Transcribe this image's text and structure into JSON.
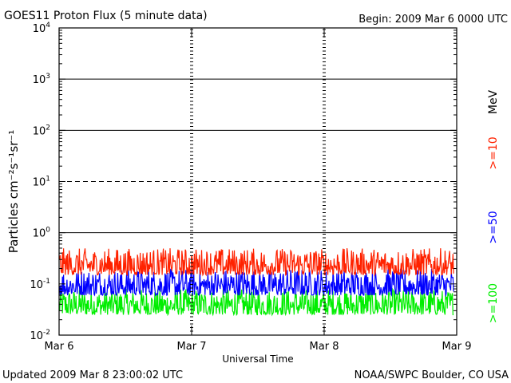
{
  "header": {
    "title": "GOES11 Proton Flux (5 minute data)",
    "begin": "Begin: 2009 Mar 6 0000 UTC"
  },
  "footer": {
    "updated": "Updated 2009 Mar  8 23:00:02 UTC",
    "credit": "NOAA/SWPC Boulder, CO USA"
  },
  "chart_data": {
    "type": "line",
    "title": "GOES11 Proton Flux (5 minute data)",
    "xlabel": "Universal Time",
    "ylabel": "Particles cm⁻²s⁻¹sr⁻¹",
    "yscale": "log",
    "ylim": [
      0.01,
      10000
    ],
    "xlim": [
      "2009-03-06",
      "2009-03-09"
    ],
    "x_ticks": [
      "Mar 6",
      "Mar 7",
      "Mar 8",
      "Mar 9"
    ],
    "y_ticks": [
      {
        "base": "10",
        "exp": "-2"
      },
      {
        "base": "10",
        "exp": "-1"
      },
      {
        "base": "10",
        "exp": "0"
      },
      {
        "base": "10",
        "exp": "1"
      },
      {
        "base": "10",
        "exp": "2"
      },
      {
        "base": "10",
        "exp": "3"
      },
      {
        "base": "10",
        "exp": "4"
      }
    ],
    "energy_unit": "MeV",
    "grid": {
      "solid_levels": [
        1,
        100,
        1000
      ],
      "dashed_levels": [
        10
      ]
    },
    "series": [
      {
        "name": ">=10",
        "color": "#ff2200",
        "typical_range": [
          0.15,
          0.5
        ]
      },
      {
        "name": ">=50",
        "color": "#0000ff",
        "typical_range": [
          0.06,
          0.2
        ]
      },
      {
        "name": ">=100",
        "color": "#00ee00",
        "typical_range": [
          0.025,
          0.08
        ]
      }
    ]
  }
}
